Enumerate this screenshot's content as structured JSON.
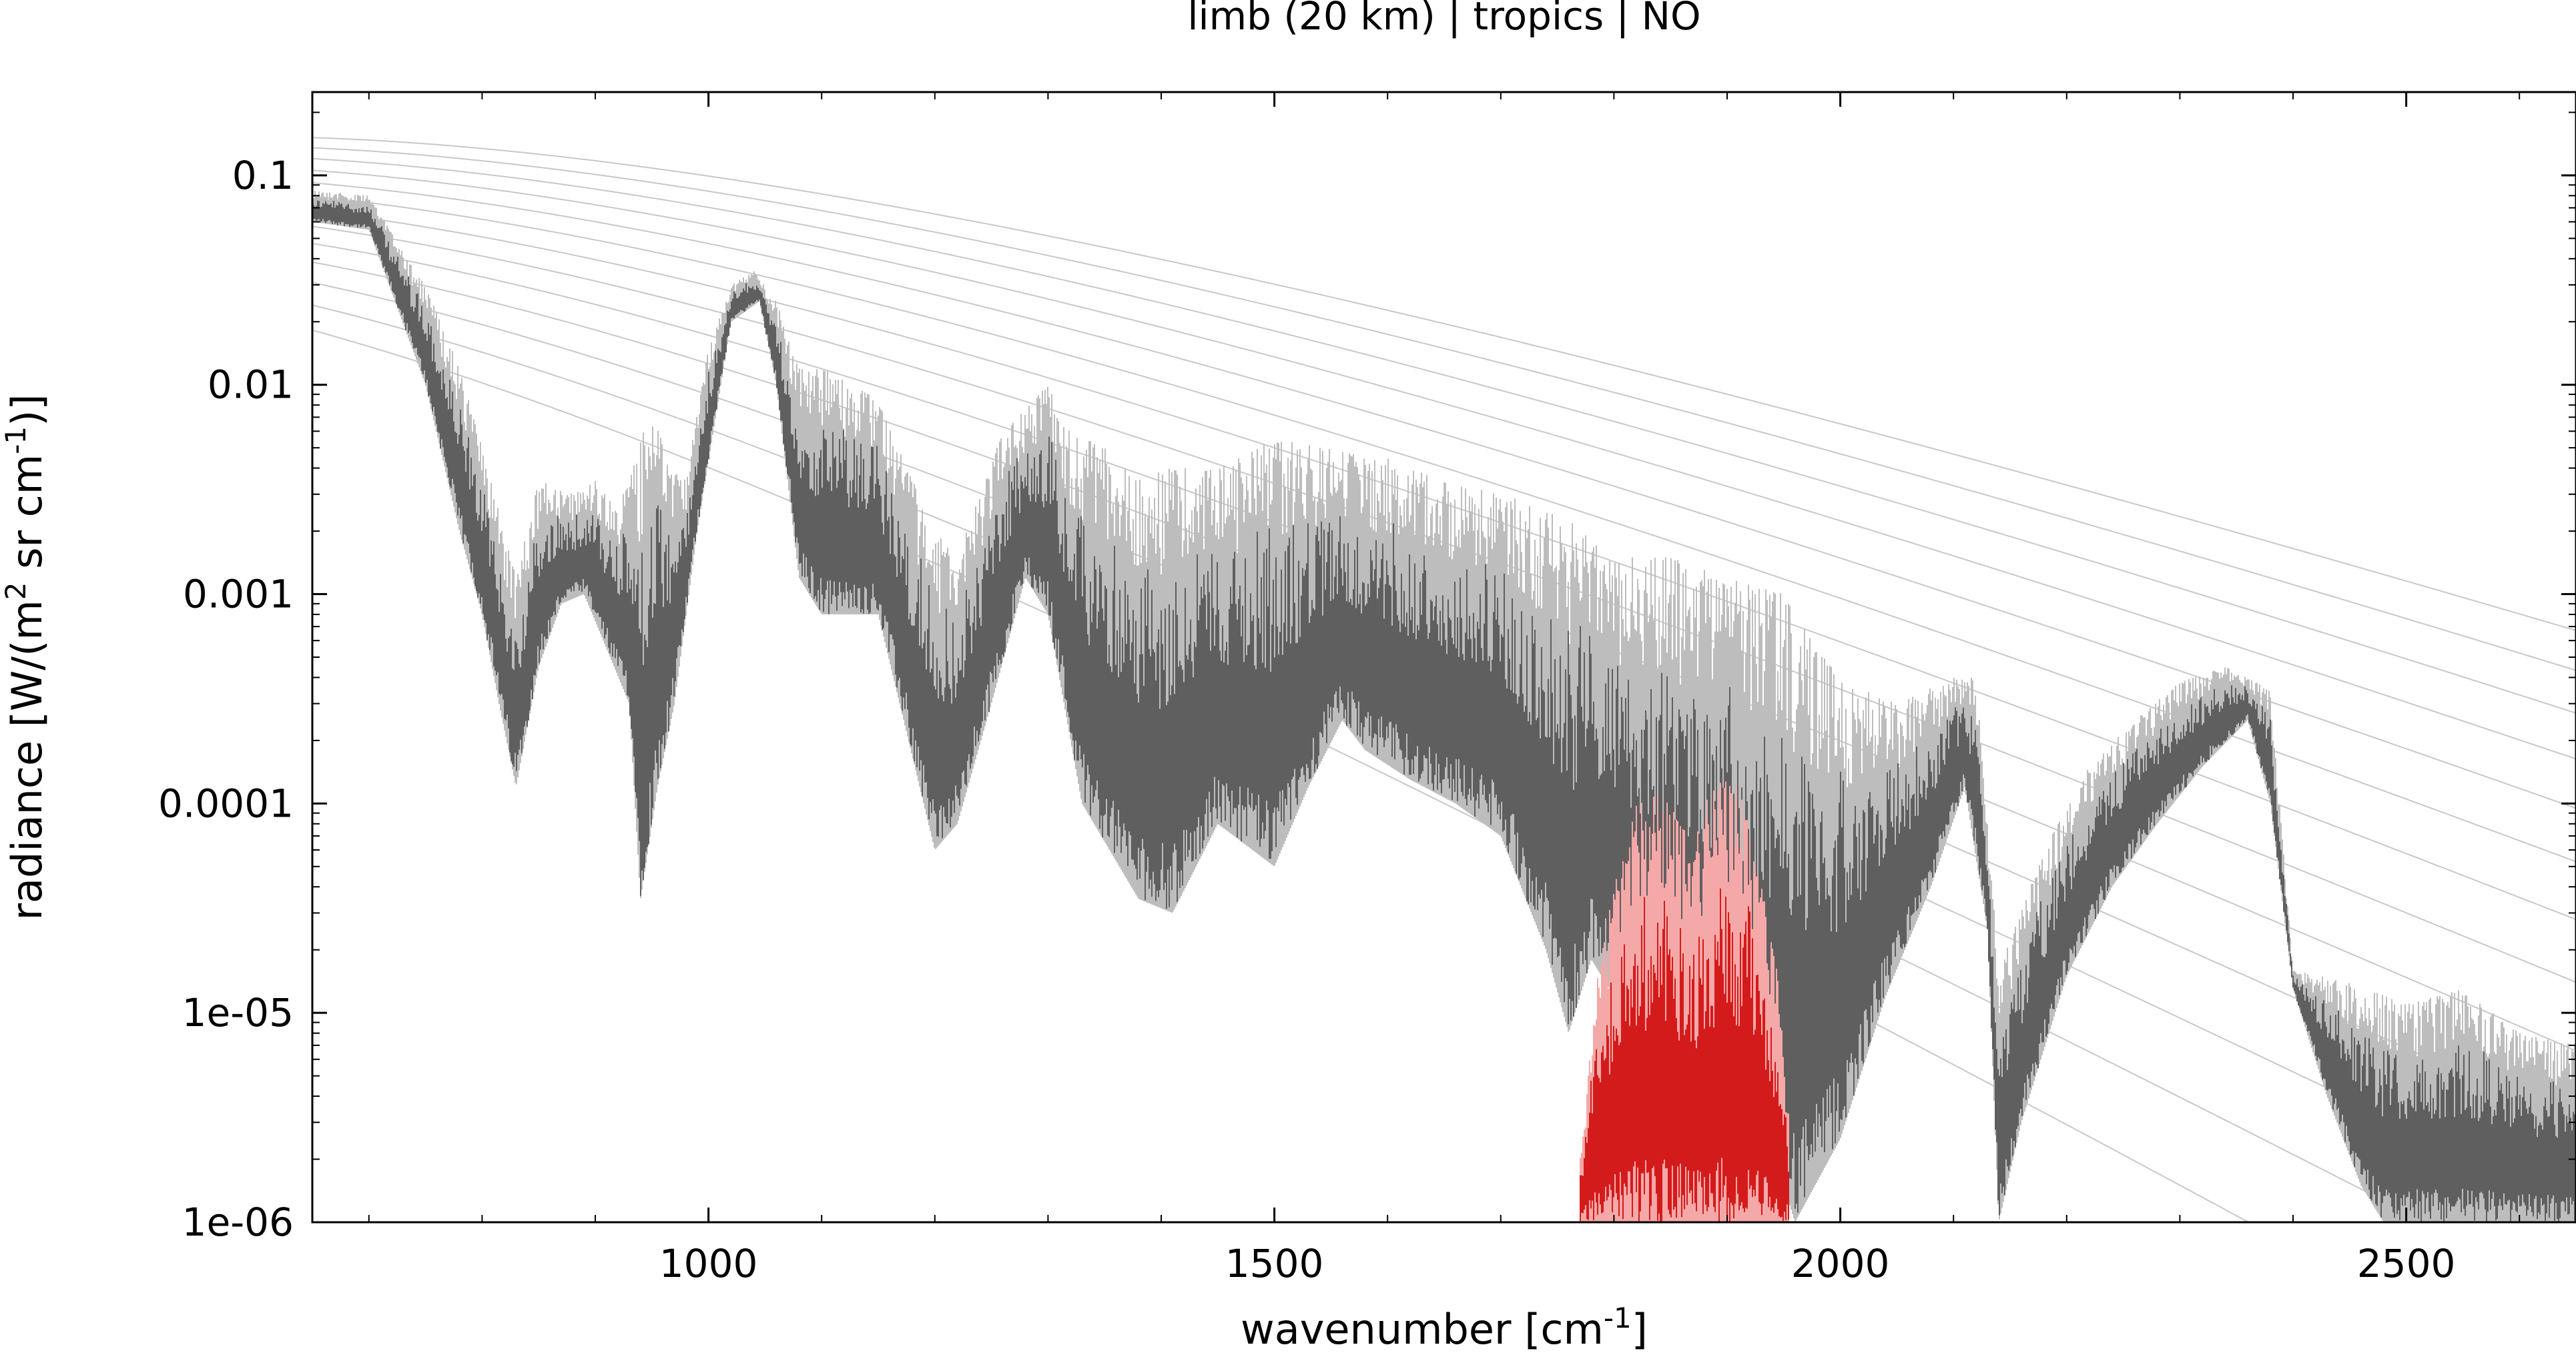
{
  "chart_data": {
    "type": "line",
    "title": "limb (20 km) | tropics | NO",
    "xlabel": "wavenumber [cm",
    "xlabel_sup": "-1",
    "xlabel_end": "]",
    "ylabel": "radiance [W/(m",
    "ylabel_sup1": "2",
    "ylabel_mid": " sr cm",
    "ylabel_sup2": "-1",
    "ylabel_end": ")]",
    "xlim": [
      650,
      2650
    ],
    "ylim": [
      1e-06,
      0.25
    ],
    "yscale": "log",
    "grid": false,
    "x_ticks": [
      {
        "value": 1000,
        "label": "1000"
      },
      {
        "value": 1500,
        "label": "1500"
      },
      {
        "value": 2000,
        "label": "2000"
      },
      {
        "value": 2500,
        "label": "2500"
      }
    ],
    "y_ticks": [
      {
        "value": 0.1,
        "label": "0.1"
      },
      {
        "value": 0.01,
        "label": "0.01"
      },
      {
        "value": 0.001,
        "label": "0.001"
      },
      {
        "value": 0.0001,
        "label": "0.0001"
      },
      {
        "value": 1e-05,
        "label": "1e-05"
      },
      {
        "value": 1e-06,
        "label": "1e-06"
      }
    ],
    "colors": {
      "total_spectrum": "#5f5f5f",
      "total_envelope": "#bdbdbd",
      "gas_spectrum": "#d41b1b",
      "gas_envelope": "#f5a8a8",
      "planck_curves": "#c8c8c8"
    },
    "planck_temperatures_K": [
      180,
      190,
      200,
      210,
      220,
      230,
      240,
      250,
      260,
      270,
      280,
      290,
      300
    ],
    "total_envelope": [
      [
        650,
        0.085
      ],
      [
        700,
        0.08
      ],
      [
        750,
        0.03
      ],
      [
        780,
        0.012
      ],
      [
        800,
        0.005
      ],
      [
        830,
        0.0012
      ],
      [
        850,
        0.0035
      ],
      [
        880,
        0.003
      ],
      [
        900,
        0.0035
      ],
      [
        920,
        0.0025
      ],
      [
        935,
        0.0045
      ],
      [
        950,
        0.008
      ],
      [
        965,
        0.004
      ],
      [
        980,
        0.0035
      ],
      [
        1000,
        0.015
      ],
      [
        1020,
        0.03
      ],
      [
        1040,
        0.035
      ],
      [
        1060,
        0.025
      ],
      [
        1080,
        0.012
      ],
      [
        1100,
        0.012
      ],
      [
        1150,
        0.0085
      ],
      [
        1200,
        0.002
      ],
      [
        1220,
        0.0015
      ],
      [
        1260,
        0.006
      ],
      [
        1300,
        0.01
      ],
      [
        1320,
        0.006
      ],
      [
        1350,
        0.005
      ],
      [
        1380,
        0.0035
      ],
      [
        1400,
        0.004
      ],
      [
        1450,
        0.004
      ],
      [
        1500,
        0.0055
      ],
      [
        1550,
        0.005
      ],
      [
        1580,
        0.0045
      ],
      [
        1600,
        0.0045
      ],
      [
        1650,
        0.0035
      ],
      [
        1700,
        0.003
      ],
      [
        1750,
        0.0025
      ],
      [
        1800,
        0.0015
      ],
      [
        1850,
        0.0015
      ],
      [
        1900,
        0.0012
      ],
      [
        1950,
        0.001
      ],
      [
        2000,
        0.0004
      ],
      [
        2050,
        0.0003
      ],
      [
        2100,
        0.0004
      ],
      [
        2120,
        0.0004
      ],
      [
        2140,
        1.6e-05
      ],
      [
        2180,
        6e-05
      ],
      [
        2220,
        0.00015
      ],
      [
        2260,
        0.00025
      ],
      [
        2300,
        0.00038
      ],
      [
        2340,
        0.00045
      ],
      [
        2380,
        0.00035
      ],
      [
        2400,
        1.6e-05
      ],
      [
        2450,
        1.4e-05
      ],
      [
        2500,
        1.1e-05
      ],
      [
        2550,
        1.3e-05
      ],
      [
        2600,
        8e-06
      ],
      [
        2650,
        7e-06
      ]
    ],
    "total_bottom": [
      [
        650,
        0.06
      ],
      [
        700,
        0.055
      ],
      [
        750,
        0.01
      ],
      [
        780,
        0.002
      ],
      [
        800,
        0.0008
      ],
      [
        815,
        0.0003
      ],
      [
        830,
        0.00012
      ],
      [
        850,
        0.00045
      ],
      [
        870,
        0.0009
      ],
      [
        890,
        0.001
      ],
      [
        910,
        0.00055
      ],
      [
        930,
        0.0003
      ],
      [
        940,
        3.5e-05
      ],
      [
        955,
        0.00012
      ],
      [
        970,
        0.0003
      ],
      [
        990,
        0.002
      ],
      [
        1020,
        0.02
      ],
      [
        1045,
        0.025
      ],
      [
        1060,
        0.01
      ],
      [
        1080,
        0.0012
      ],
      [
        1100,
        0.0008
      ],
      [
        1150,
        0.0008
      ],
      [
        1200,
        6e-05
      ],
      [
        1220,
        8e-05
      ],
      [
        1250,
        0.0003
      ],
      [
        1280,
        0.0012
      ],
      [
        1300,
        0.0008
      ],
      [
        1330,
        0.0001
      ],
      [
        1380,
        3.5e-05
      ],
      [
        1410,
        3e-05
      ],
      [
        1450,
        8e-05
      ],
      [
        1500,
        5e-05
      ],
      [
        1530,
        0.00012
      ],
      [
        1560,
        0.00025
      ],
      [
        1580,
        0.00018
      ],
      [
        1620,
        0.00013
      ],
      [
        1660,
        0.0001
      ],
      [
        1700,
        7e-05
      ],
      [
        1740,
        2e-05
      ],
      [
        1760,
        8e-06
      ],
      [
        1780,
        1.8e-05
      ],
      [
        1820,
        8e-06
      ],
      [
        1860,
        6e-06
      ],
      [
        1900,
        4e-06
      ],
      [
        1950,
        1.5e-06
      ],
      [
        1960,
        1e-06
      ],
      [
        2000,
        2.5e-06
      ],
      [
        2040,
        1.2e-05
      ],
      [
        2080,
        4e-05
      ],
      [
        2110,
        0.00012
      ],
      [
        2130,
        2.5e-05
      ],
      [
        2140,
        1e-06
      ],
      [
        2160,
        3e-06
      ],
      [
        2200,
        1.5e-05
      ],
      [
        2240,
        4e-05
      ],
      [
        2280,
        8e-05
      ],
      [
        2320,
        0.00015
      ],
      [
        2360,
        0.00025
      ],
      [
        2380,
        0.0001
      ],
      [
        2400,
        1.3e-05
      ],
      [
        2430,
        4e-06
      ],
      [
        2460,
        1.5e-06
      ],
      [
        2480,
        1e-06
      ],
      [
        2650,
        1e-06
      ]
    ],
    "gas_envelope": [
      [
        1770,
        2e-06
      ],
      [
        1785,
        1.5e-05
      ],
      [
        1800,
        4e-05
      ],
      [
        1820,
        0.0001
      ],
      [
        1840,
        0.00012
      ],
      [
        1860,
        8e-05
      ],
      [
        1870,
        6e-05
      ],
      [
        1880,
        0.0001
      ],
      [
        1895,
        0.00013
      ],
      [
        1910,
        0.00012
      ],
      [
        1925,
        6e-05
      ],
      [
        1945,
        1.5e-05
      ],
      [
        1955,
        3e-06
      ]
    ],
    "gas_bottom": [
      [
        1770,
        1e-06
      ],
      [
        1955,
        1e-06
      ]
    ]
  }
}
